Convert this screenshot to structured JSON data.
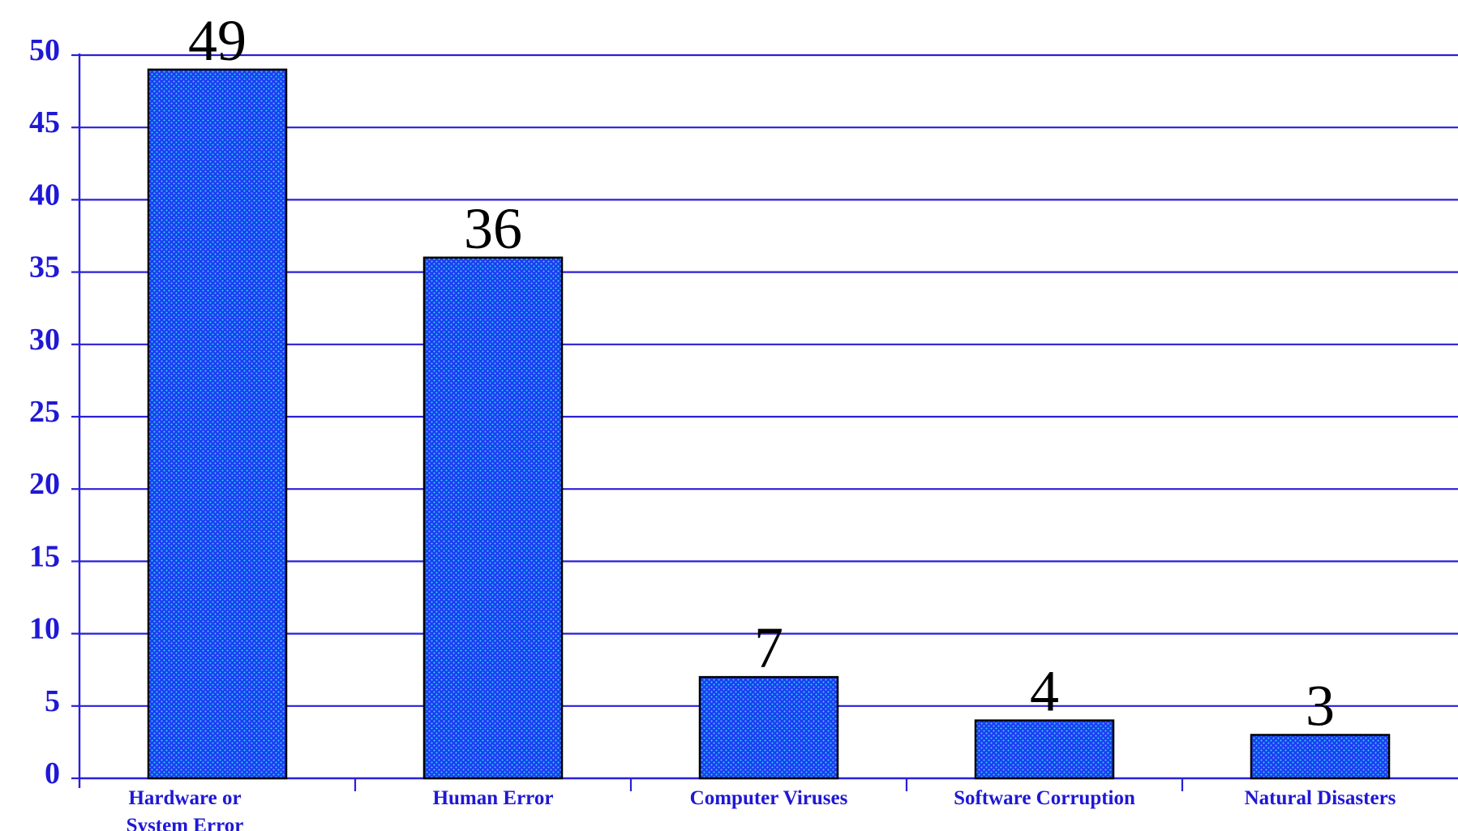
{
  "chart_data": {
    "type": "bar",
    "title": "",
    "xlabel": "",
    "ylabel": "",
    "categories": [
      [
        "Hardware or",
        "System Error"
      ],
      [
        "Human Error"
      ],
      [
        "Computer Viruses"
      ],
      [
        "Software Corruption"
      ],
      [
        "Natural Disasters"
      ]
    ],
    "values": [
      49,
      36,
      7,
      4,
      3
    ],
    "value_labels": [
      "49",
      "36",
      "7",
      "4",
      "3"
    ],
    "ylim": [
      0,
      50
    ],
    "yticks": [
      0,
      5,
      10,
      15,
      20,
      25,
      30,
      35,
      40,
      45,
      50
    ],
    "ytick_labels": [
      "0",
      "5",
      "10",
      "15",
      "20",
      "25",
      "30",
      "35",
      "40",
      "45",
      "50"
    ],
    "grid": true,
    "legend": "none",
    "colors": {
      "bar_fill": "#1e3df0",
      "bar_dots": "#35d6ff",
      "grid": "#2a1fd8",
      "axis": "#2a1fd8",
      "tick_label": "#1f18d6",
      "value_label": "#000000"
    }
  }
}
